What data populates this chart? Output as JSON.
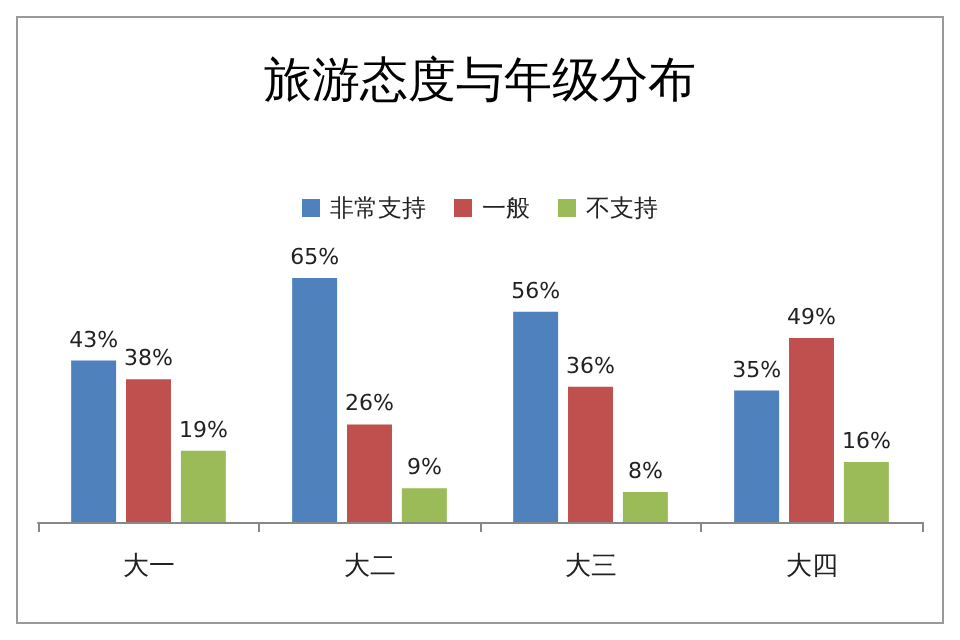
{
  "chart_data": {
    "type": "bar",
    "title": "旅游态度与年级分布",
    "categories": [
      "大一",
      "大二",
      "大三",
      "大四"
    ],
    "legend": "top",
    "series": [
      {
        "name": "非常支持",
        "color": "#4f81bd",
        "values": [
          43,
          65,
          56,
          35
        ],
        "value_labels": [
          "43%",
          "65%",
          "56%",
          "35%"
        ]
      },
      {
        "name": "一般",
        "color": "#c0504d",
        "values": [
          38,
          26,
          36,
          49
        ],
        "value_labels": [
          "38%",
          "26%",
          "36%",
          "49%"
        ]
      },
      {
        "name": "不支持",
        "color": "#9bbb59",
        "values": [
          19,
          9,
          8,
          16
        ],
        "value_labels": [
          "19%",
          "9%",
          "8%",
          "16%"
        ]
      }
    ]
  }
}
